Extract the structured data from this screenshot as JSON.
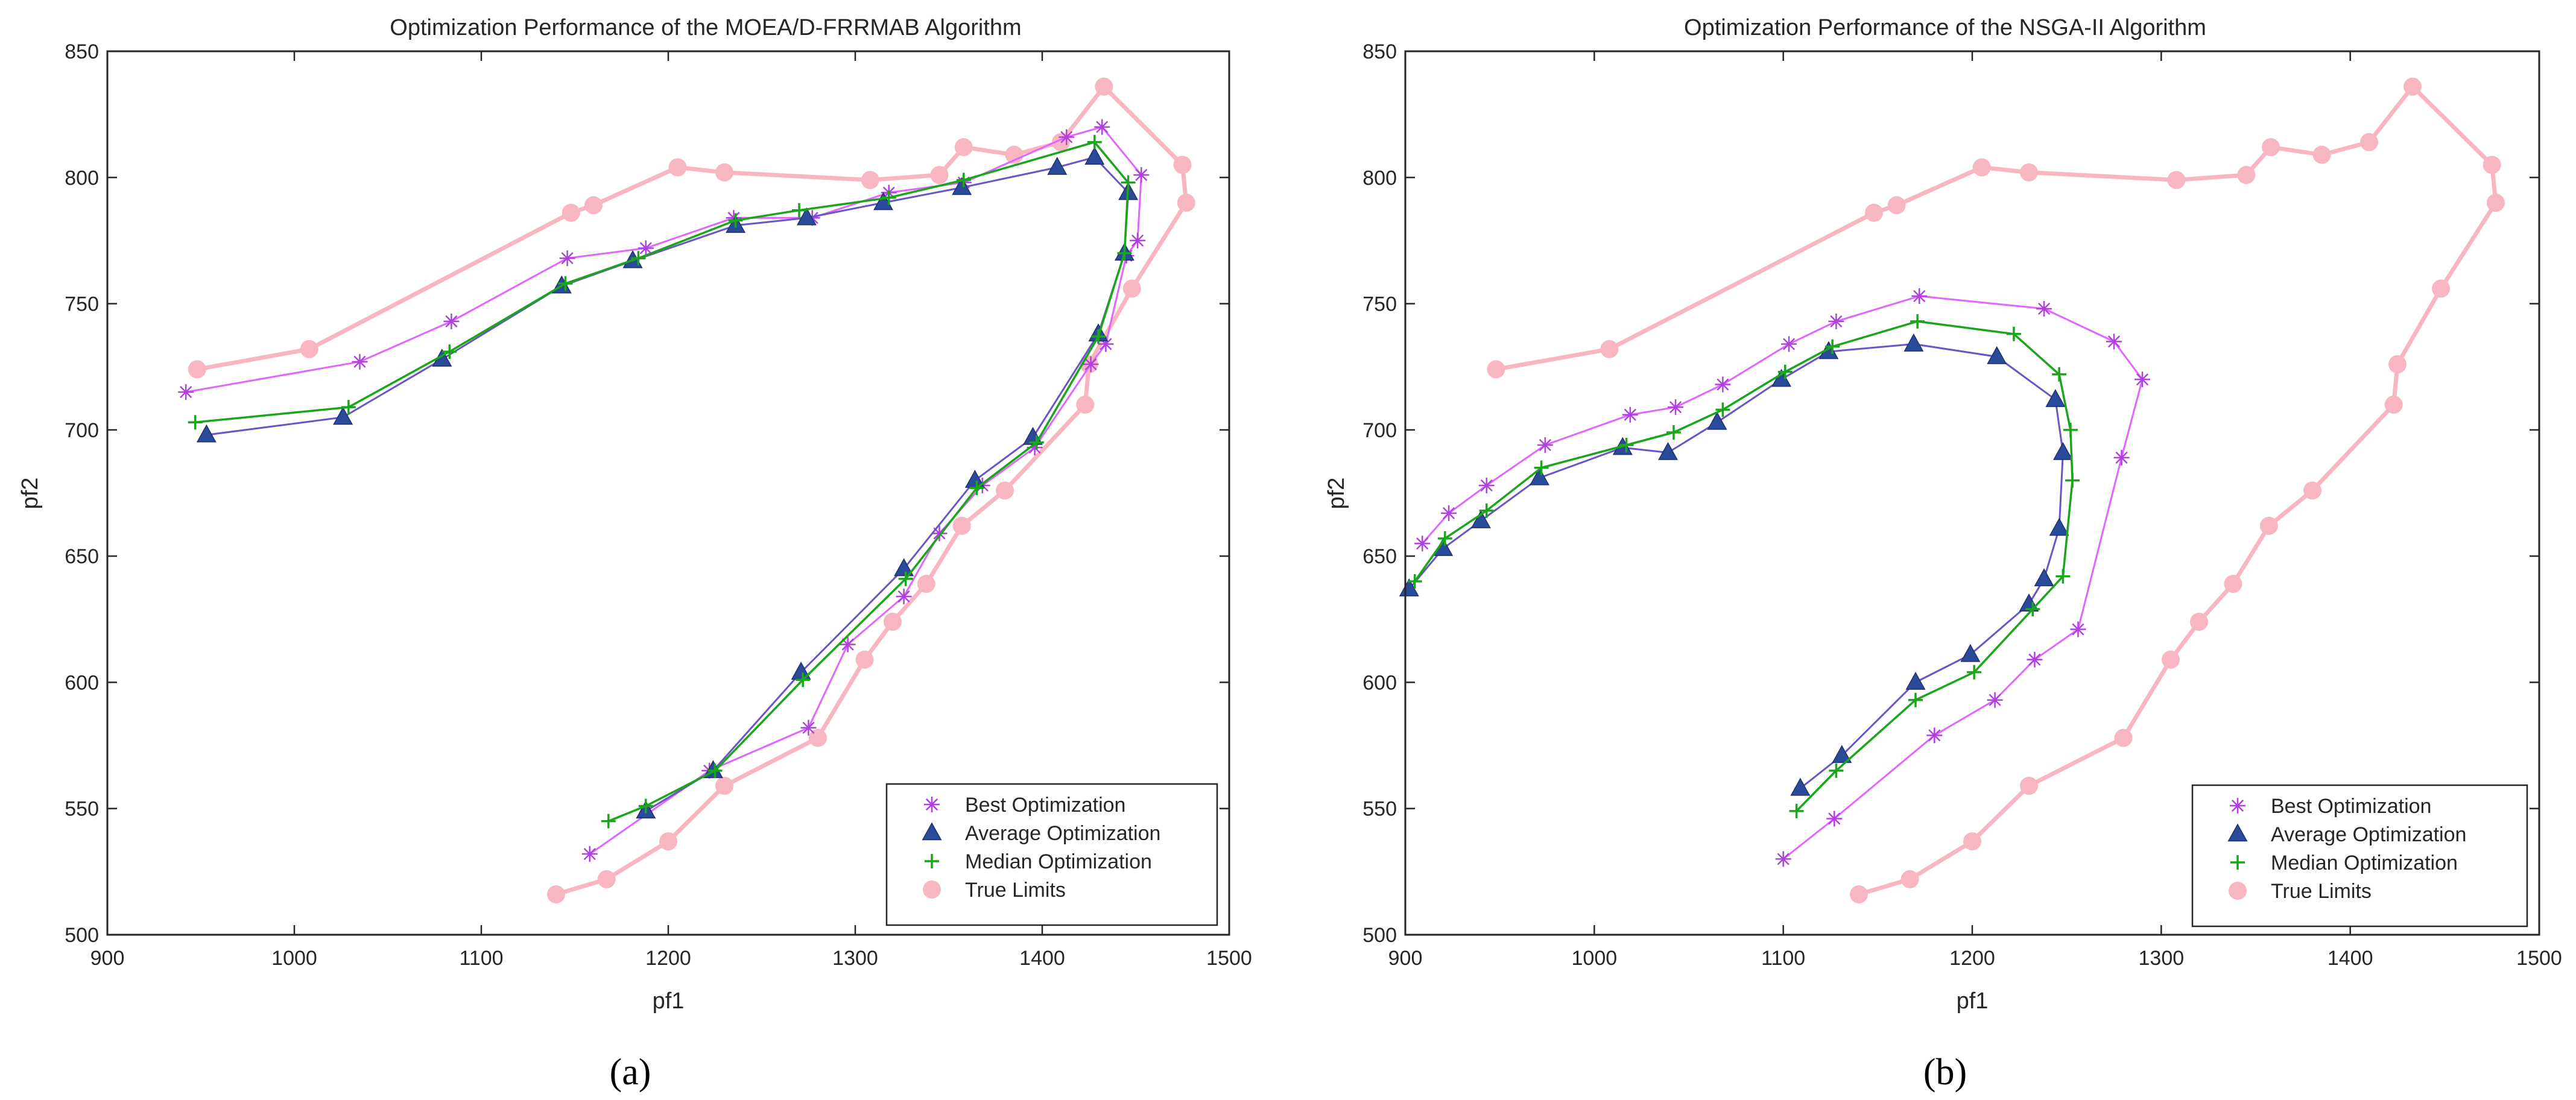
{
  "colors": {
    "best": "#e066ff",
    "best_marker": "#b040e0",
    "average": "#6a55c8",
    "average_marker": "#2a4a9a",
    "median": "#1aa61a",
    "true": "#f8b6c2"
  },
  "chart_data": [
    {
      "type": "line",
      "panel_label": "(a)",
      "title": "Optimization Performance of the MOEA/D-FRRMAB Algorithm",
      "xlabel": "pf1",
      "ylabel": "pf2",
      "xlim": [
        900,
        1500
      ],
      "ylim": [
        500,
        850
      ],
      "xticks": [
        "900",
        "1000",
        "1100",
        "1200",
        "1300",
        "1400",
        "1500"
      ],
      "yticks": [
        "500",
        "550",
        "600",
        "650",
        "700",
        "750",
        "800",
        "850"
      ],
      "legend": [
        "Best Optimization",
        "Average Optimization",
        "Median Optimization",
        "True Limits"
      ],
      "legend_position": "bottom-right",
      "series": [
        {
          "name": "True Limits",
          "key": "true",
          "marker": "circle",
          "x": [
            948,
            1008,
            1148,
            1160,
            1205,
            1230,
            1308,
            1345,
            1358,
            1385,
            1410,
            1433,
            1475,
            1477,
            1448,
            1425,
            1423,
            1380,
            1357,
            1338,
            1320,
            1305,
            1280,
            1230,
            1200,
            1167,
            1140
          ],
          "y": [
            724,
            732,
            786,
            789,
            804,
            802,
            799,
            801,
            812,
            809,
            814,
            836,
            805,
            790,
            756,
            726,
            710,
            676,
            662,
            639,
            624,
            609,
            578,
            559,
            537,
            522,
            516
          ]
        },
        {
          "name": "Best Optimization",
          "key": "best",
          "marker": "star",
          "x": [
            942,
            1035,
            1084,
            1146,
            1188,
            1235,
            1277,
            1318,
            1358,
            1413,
            1432,
            1453,
            1451,
            1445,
            1434,
            1426,
            1396,
            1368,
            1345,
            1326,
            1296,
            1275,
            1222,
            1158
          ],
          "y": [
            715,
            727,
            743,
            768,
            772,
            784,
            784,
            794,
            798,
            816,
            820,
            801,
            775,
            769,
            734,
            726,
            693,
            678,
            659,
            634,
            615,
            582,
            565,
            532
          ]
        },
        {
          "name": "Average Optimization",
          "key": "average",
          "marker": "triangle",
          "x": [
            953,
            1026,
            1079,
            1143,
            1181,
            1236,
            1274,
            1315,
            1357,
            1408,
            1428,
            1446,
            1444,
            1430,
            1395,
            1364,
            1326,
            1271,
            1224,
            1188
          ],
          "y": [
            698,
            705,
            728,
            757,
            767,
            781,
            784,
            790,
            796,
            804,
            808,
            794,
            770,
            738,
            697,
            680,
            645,
            604,
            565,
            549
          ]
        },
        {
          "name": "Median Optimization",
          "key": "median",
          "marker": "plus",
          "x": [
            947,
            1029,
            1083,
            1145,
            1184,
            1236,
            1270,
            1318,
            1358,
            1428,
            1446,
            1444,
            1430,
            1397,
            1365,
            1327,
            1272,
            1225,
            1188,
            1168
          ],
          "y": [
            703,
            709,
            731,
            758,
            768,
            783,
            787,
            792,
            799,
            814,
            798,
            770,
            737,
            695,
            677,
            641,
            601,
            565,
            551,
            545
          ]
        }
      ]
    },
    {
      "type": "line",
      "panel_label": "(b)",
      "title": "Optimization Performance of the NSGA-II Algorithm",
      "xlabel": "pf1",
      "ylabel": "pf2",
      "xlim": [
        900,
        1500
      ],
      "ylim": [
        500,
        850
      ],
      "xticks": [
        "900",
        "1000",
        "1100",
        "1200",
        "1300",
        "1400",
        "1500"
      ],
      "yticks": [
        "500",
        "550",
        "600",
        "650",
        "700",
        "750",
        "800",
        "850"
      ],
      "legend": [
        "Best Optimization",
        "Average Optimization",
        "Median Optimization",
        "True Limits"
      ],
      "legend_position": "bottom-right",
      "series": [
        {
          "name": "True Limits",
          "key": "true",
          "marker": "circle",
          "x": [
            948,
            1008,
            1148,
            1160,
            1205,
            1230,
            1308,
            1345,
            1358,
            1385,
            1410,
            1433,
            1475,
            1477,
            1448,
            1425,
            1423,
            1380,
            1357,
            1338,
            1320,
            1305,
            1280,
            1230,
            1200,
            1167,
            1140
          ],
          "y": [
            724,
            732,
            786,
            789,
            804,
            802,
            799,
            801,
            812,
            809,
            814,
            836,
            805,
            790,
            756,
            726,
            710,
            676,
            662,
            639,
            624,
            609,
            578,
            559,
            537,
            522,
            516
          ]
        },
        {
          "name": "Best Optimization",
          "key": "best",
          "marker": "star",
          "x": [
            909,
            923,
            943,
            974,
            1019,
            1043,
            1068,
            1103,
            1128,
            1172,
            1238,
            1275,
            1290,
            1279,
            1256,
            1233,
            1212,
            1180,
            1127,
            1100
          ],
          "y": [
            655,
            667,
            678,
            694,
            706,
            709,
            718,
            734,
            743,
            753,
            748,
            735,
            720,
            689,
            621,
            609,
            593,
            579,
            546,
            530
          ]
        },
        {
          "name": "Average Optimization",
          "key": "average",
          "marker": "triangle",
          "x": [
            902,
            920,
            940,
            971,
            1015,
            1039,
            1065,
            1099,
            1124,
            1169,
            1213,
            1244,
            1248,
            1246,
            1238,
            1230,
            1199,
            1170,
            1131,
            1109
          ],
          "y": [
            637,
            653,
            664,
            681,
            693,
            691,
            703,
            720,
            731,
            734,
            729,
            712,
            691,
            661,
            641,
            631,
            611,
            600,
            571,
            558
          ]
        },
        {
          "name": "Median Optimization",
          "key": "median",
          "marker": "plus",
          "x": [
            905,
            921,
            943,
            972,
            1017,
            1042,
            1068,
            1101,
            1126,
            1171,
            1222,
            1246,
            1252,
            1253,
            1248,
            1232,
            1201,
            1170,
            1128,
            1107
          ],
          "y": [
            640,
            657,
            668,
            685,
            694,
            699,
            708,
            723,
            733,
            743,
            738,
            722,
            700,
            680,
            642,
            629,
            604,
            593,
            565,
            549
          ]
        }
      ]
    }
  ]
}
